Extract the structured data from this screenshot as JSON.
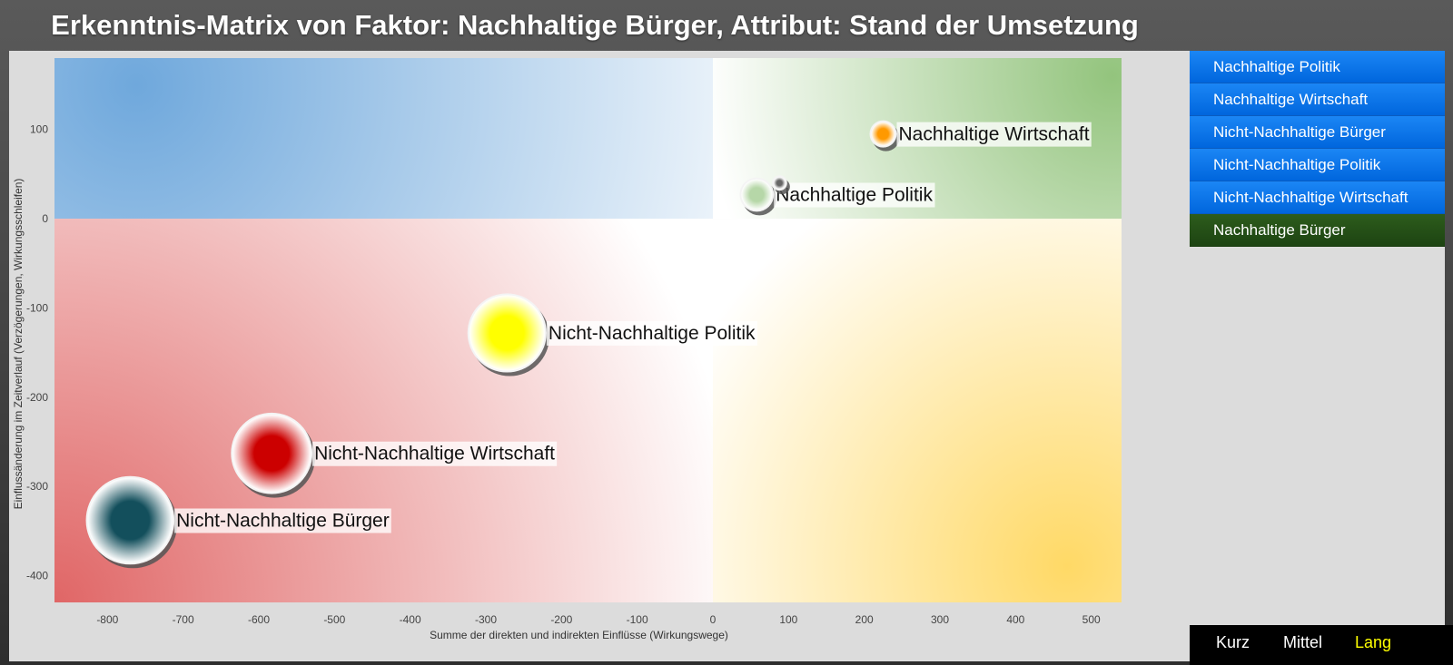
{
  "title": "Erkenntnis-Matrix von Faktor: Nachhaltige Bürger, Attribut: Stand der Umsetzung",
  "sidebar": {
    "items": [
      {
        "label": "Nachhaltige Politik",
        "active": false
      },
      {
        "label": "Nachhaltige Wirtschaft",
        "active": false
      },
      {
        "label": "Nicht-Nachhaltige Bürger",
        "active": false
      },
      {
        "label": "Nicht-Nachhaltige Politik",
        "active": false
      },
      {
        "label": "Nicht-Nachhaltige Wirtschaft",
        "active": false
      },
      {
        "label": "Nachhaltige Bürger",
        "active": true
      }
    ]
  },
  "term_buttons": {
    "short": "Kurz",
    "medium": "Mittel",
    "long": "Lang",
    "active": "long"
  },
  "chart_data": {
    "type": "scatter",
    "variant": "bubble",
    "title": "",
    "xlabel": "Summe der direkten und indirekten Einflüsse (Wirkungswege)",
    "ylabel": "Einflussänderung im Zeitverlauf (Verzögerungen, Wirkungsschleifen)",
    "xlim": [
      -870,
      540
    ],
    "ylim": [
      -430,
      180
    ],
    "xticks": [
      -800,
      -700,
      -600,
      -500,
      -400,
      -300,
      -200,
      -100,
      0,
      100,
      200,
      300,
      400,
      500
    ],
    "yticks": [
      -400,
      -300,
      -200,
      -100,
      0,
      100
    ],
    "grid": false,
    "quadrant_colors": {
      "top_left": "#6fa8dc",
      "top_right": "#93c47d",
      "bottom_left": "#e06666",
      "bottom_right": "#ffd966"
    },
    "points": [
      {
        "label": "Nachhaltige Wirtschaft",
        "x": 225,
        "y": 95,
        "size": 1,
        "color": "#ff9900"
      },
      {
        "label": "Nachhaltige Politik",
        "x": 58,
        "y": 27,
        "size": 1.3,
        "color": "#b6d7a8"
      },
      {
        "label": "Nicht-Nachhaltige Politik",
        "x": -272,
        "y": -128,
        "size": 3.2,
        "color": "#ffff00"
      },
      {
        "label": "Nicht-Nachhaltige Wirtschaft",
        "x": -583,
        "y": -263,
        "size": 3.3,
        "color": "#cc0000"
      },
      {
        "label": "Nicht-Nachhaltige Bürger",
        "x": -770,
        "y": -338,
        "size": 3.6,
        "color": "#134f5c"
      },
      {
        "label": "",
        "x": 88,
        "y": 40,
        "size": 0.5,
        "color": "#666666"
      }
    ]
  }
}
